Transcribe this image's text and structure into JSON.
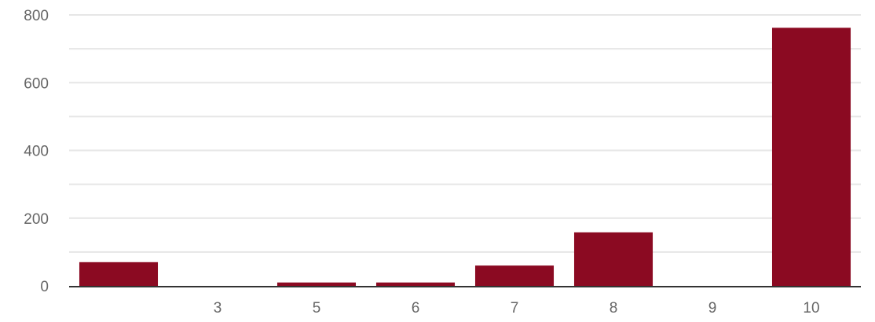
{
  "chart_data": {
    "type": "bar",
    "title": "",
    "xlabel": "",
    "ylabel": "",
    "categories": [
      "",
      "3",
      "5",
      "6",
      "7",
      "8",
      "9",
      "10"
    ],
    "values": [
      70,
      0,
      10,
      10,
      60,
      158,
      0,
      762
    ],
    "ylim": [
      0,
      800
    ],
    "yticks": [
      0,
      200,
      400,
      600,
      800
    ],
    "grid": true,
    "bar_color": "#8b0a22",
    "grid_color": "#e6e6e6",
    "axis_color": "#333333"
  }
}
